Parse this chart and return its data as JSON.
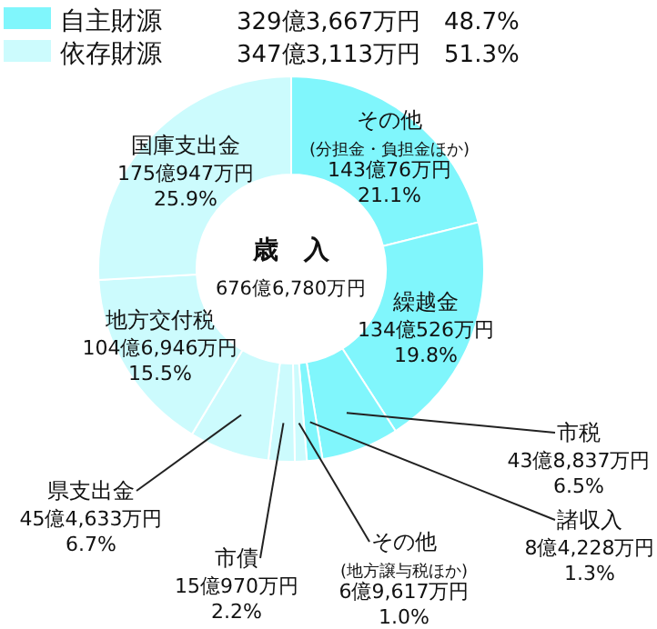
{
  "chart_data": {
    "type": "donut",
    "title": "歳　入",
    "subtitle": "676億6,780万円",
    "categories": [
      "その他\n(分担金・負担金ほか)",
      "繰越金",
      "市税",
      "諸収入",
      "その他\n(地方譲与税ほか)",
      "市債",
      "県支出金",
      "地方交付税",
      "国庫支出金"
    ],
    "values": [
      21.1,
      19.8,
      6.5,
      1.3,
      1.0,
      2.2,
      6.7,
      15.5,
      25.9
    ],
    "colors": [
      "#80f6fc",
      "#80f6fc",
      "#80f6fc",
      "#80f6fc",
      "#ccfbfd",
      "#ccfbfd",
      "#ccfbfd",
      "#ccfbfd",
      "#ccfbfd"
    ],
    "value_labels": [
      "143億76万円\n21.1%",
      "134億526万円\n19.8%",
      "43億8,837万円\n6.5%",
      "8億4,228万円\n1.3%",
      "6億9,617万円\n1.0%",
      "15億970万円\n2.2%",
      "45億4,633万円\n6.7%",
      "104億6,946万円\n15.5%",
      "175億947万円\n25.9%"
    ],
    "annotations": [
      "自主財源",
      "329億3,667万円　48.7%",
      "依存財源",
      "347億3,113万円　51.3%"
    ]
  }
}
